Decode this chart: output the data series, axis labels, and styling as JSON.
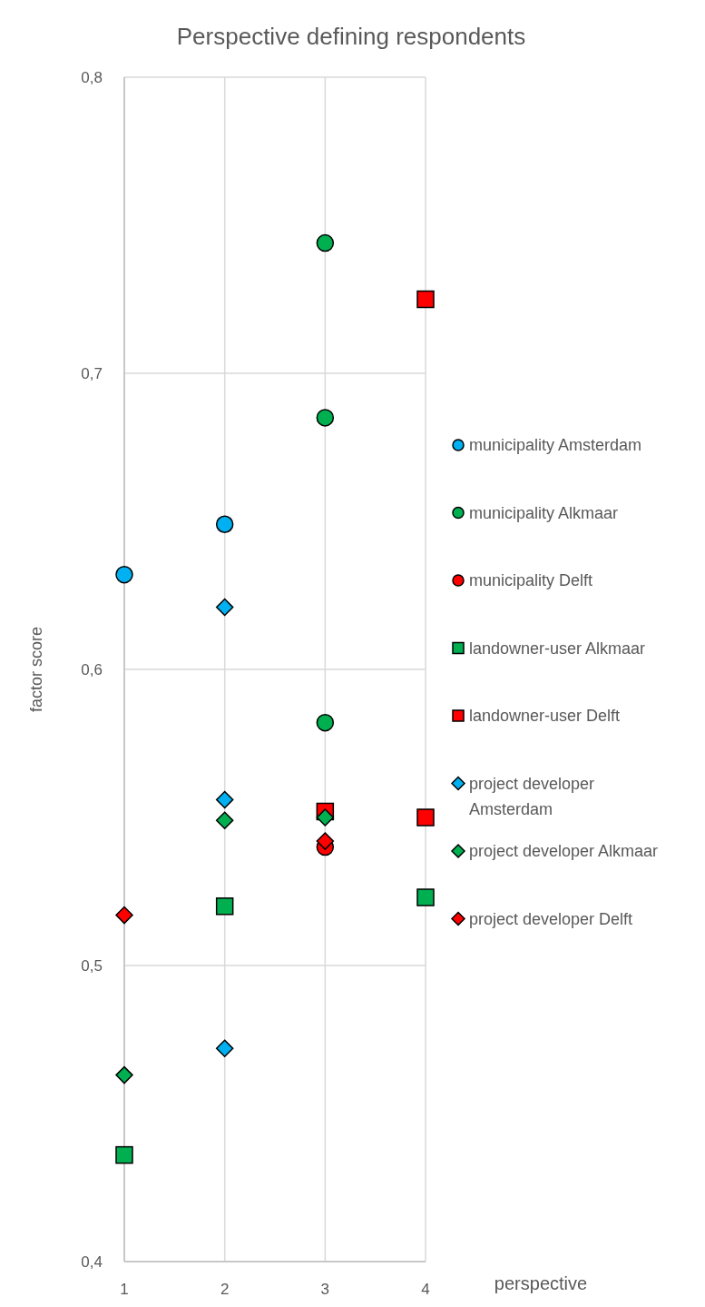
{
  "chart_data": {
    "type": "scatter",
    "title": "Perspective defining respondents",
    "xlabel": "perspective",
    "ylabel": "factor score",
    "xlim": [
      1,
      4
    ],
    "xticks": [
      1,
      2,
      3,
      4
    ],
    "ylim": [
      0.4,
      0.8
    ],
    "yticks": [
      {
        "value": 0.4,
        "label": "0,4"
      },
      {
        "value": 0.5,
        "label": "0,5"
      },
      {
        "value": 0.6,
        "label": "0,6"
      },
      {
        "value": 0.7,
        "label": "0,7"
      },
      {
        "value": 0.8,
        "label": "0,8"
      }
    ],
    "grid": true,
    "legend": "right",
    "series": [
      {
        "name": "municipality Amsterdam",
        "color": "#00b0f0",
        "marker": "circle",
        "x": [
          1,
          2
        ],
        "values": [
          0.632,
          0.649
        ]
      },
      {
        "name": "municipality Alkmaar",
        "color": "#00b050",
        "marker": "circle",
        "x": [
          3,
          3,
          3
        ],
        "values": [
          0.744,
          0.685,
          0.582
        ]
      },
      {
        "name": "municipality Delft",
        "color": "#ff0000",
        "marker": "circle",
        "x": [
          3
        ],
        "values": [
          0.54
        ]
      },
      {
        "name": "landowner-user Alkmaar",
        "color": "#00b050",
        "marker": "square",
        "x": [
          1,
          2,
          4
        ],
        "values": [
          0.436,
          0.52,
          0.523
        ]
      },
      {
        "name": "landowner-user Delft",
        "color": "#ff0000",
        "marker": "square",
        "x": [
          3,
          4,
          4
        ],
        "values": [
          0.552,
          0.725,
          0.55
        ]
      },
      {
        "name": "project developer Amsterdam",
        "color": "#00b0f0",
        "marker": "diamond",
        "x": [
          2,
          2,
          2
        ],
        "values": [
          0.621,
          0.556,
          0.472
        ]
      },
      {
        "name": "project developer Alkmaar",
        "color": "#00b050",
        "marker": "diamond",
        "x": [
          1,
          2,
          3
        ],
        "values": [
          0.463,
          0.549,
          0.55
        ]
      },
      {
        "name": "project developer Delft",
        "color": "#ff0000",
        "marker": "diamond",
        "x": [
          1,
          3
        ],
        "values": [
          0.517,
          0.542
        ]
      }
    ]
  }
}
